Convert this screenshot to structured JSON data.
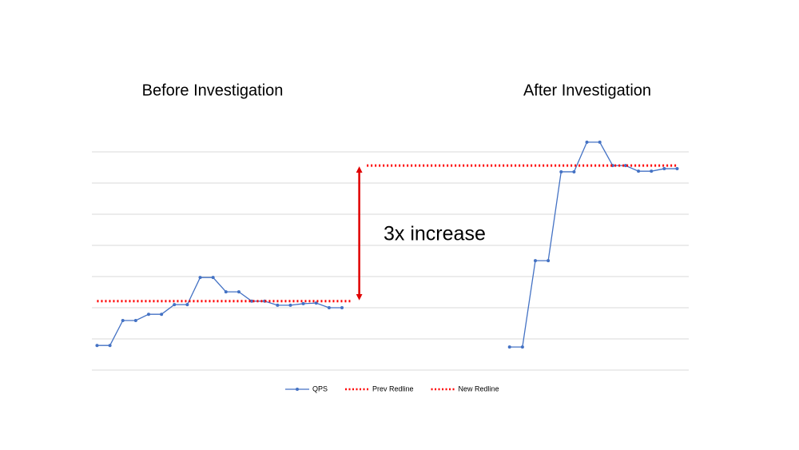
{
  "chart_data": {
    "type": "line",
    "panel_titles": [
      "Before Investigation",
      "After Investigation"
    ],
    "annotation": "3x increase",
    "xlim": [
      -0.4,
      45.9
    ],
    "ylim": [
      0,
      7.5
    ],
    "yticks": [
      0,
      1,
      2,
      3,
      4,
      5,
      6,
      7
    ],
    "ytick_labels": false,
    "grid": true,
    "legend": "bottom",
    "series": [
      {
        "name": "QPS",
        "color": "#4472c4",
        "dash": "solid",
        "markers": true,
        "x": [
          0,
          1,
          2,
          3,
          4,
          5,
          6,
          7,
          8,
          9,
          10,
          11,
          12,
          13,
          14,
          15,
          16,
          17,
          18,
          19,
          20,
          21,
          22,
          23,
          24,
          25,
          26,
          27,
          28,
          29,
          30,
          31,
          32,
          33,
          34,
          35,
          36,
          37,
          38,
          39,
          40,
          41,
          42,
          43,
          44,
          45
        ],
        "values": [
          0.79,
          0.79,
          1.59,
          1.59,
          1.79,
          1.79,
          2.1,
          2.1,
          2.97,
          2.97,
          2.51,
          2.51,
          2.21,
          2.21,
          2.08,
          2.08,
          2.13,
          2.15,
          2.0,
          2.0,
          null,
          null,
          null,
          null,
          null,
          null,
          null,
          null,
          null,
          null,
          null,
          null,
          0.74,
          0.74,
          3.51,
          3.51,
          6.36,
          6.36,
          7.31,
          7.31,
          6.56,
          6.56,
          6.38,
          6.38,
          6.46,
          6.46
        ]
      },
      {
        "name": "Prev Redline",
        "color": "#ff0000",
        "dash": "dotted",
        "markers": false,
        "x": [
          0,
          19.75
        ],
        "values": [
          2.21,
          2.21
        ]
      },
      {
        "name": "New Redline",
        "color": "#ff0000",
        "dash": "dotted",
        "markers": false,
        "x": [
          20.93,
          45.1
        ],
        "values": [
          6.56,
          6.56
        ]
      }
    ]
  }
}
